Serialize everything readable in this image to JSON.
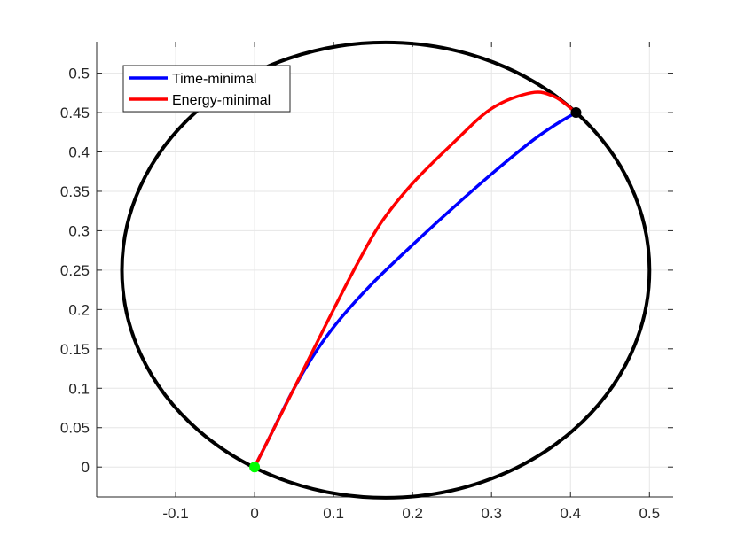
{
  "chart_data": {
    "type": "line",
    "title": "",
    "xlabel": "",
    "ylabel": "",
    "xlim": [
      -0.2,
      0.53
    ],
    "ylim": [
      -0.038,
      0.54
    ],
    "x_ticks": [
      -0.1,
      0,
      0.1,
      0.2,
      0.3,
      0.4,
      0.5
    ],
    "x_tick_labels": [
      "-0.1",
      "0",
      "0.1",
      "0.2",
      "0.3",
      "0.4",
      "0.5"
    ],
    "y_ticks": [
      0,
      0.05,
      0.1,
      0.15,
      0.2,
      0.25,
      0.3,
      0.35,
      0.4,
      0.45,
      0.5
    ],
    "y_tick_labels": [
      "0",
      "0.05",
      "0.1",
      "0.15",
      "0.2",
      "0.25",
      "0.3",
      "0.35",
      "0.4",
      "0.45",
      "0.5"
    ],
    "grid": true,
    "legend_position": "top-left",
    "boundary": {
      "shape": "ellipse",
      "center": [
        0.166,
        0.25
      ],
      "radius_x": 0.334,
      "radius_y": 0.289,
      "color": "#000000"
    },
    "series": [
      {
        "name": "Time-minimal",
        "color": "#0000ff",
        "points": [
          [
            0,
            0
          ],
          [
            0.02,
            0.04
          ],
          [
            0.05,
            0.1
          ],
          [
            0.08,
            0.15
          ],
          [
            0.11,
            0.19
          ],
          [
            0.15,
            0.234
          ],
          [
            0.2,
            0.282
          ],
          [
            0.25,
            0.328
          ],
          [
            0.3,
            0.372
          ],
          [
            0.35,
            0.413
          ],
          [
            0.38,
            0.434
          ],
          [
            0.407,
            0.45
          ]
        ]
      },
      {
        "name": "Energy-minimal",
        "color": "#ff0000",
        "points": [
          [
            0,
            0
          ],
          [
            0.03,
            0.06
          ],
          [
            0.07,
            0.14
          ],
          [
            0.1,
            0.2
          ],
          [
            0.13,
            0.258
          ],
          [
            0.16,
            0.31
          ],
          [
            0.2,
            0.36
          ],
          [
            0.25,
            0.41
          ],
          [
            0.3,
            0.455
          ],
          [
            0.35,
            0.475
          ],
          [
            0.38,
            0.47
          ],
          [
            0.407,
            0.45
          ]
        ]
      }
    ],
    "markers": [
      {
        "name": "start",
        "x": 0,
        "y": 0,
        "color": "#00ff00"
      },
      {
        "name": "end",
        "x": 0.407,
        "y": 0.45,
        "color": "#000000"
      }
    ]
  }
}
